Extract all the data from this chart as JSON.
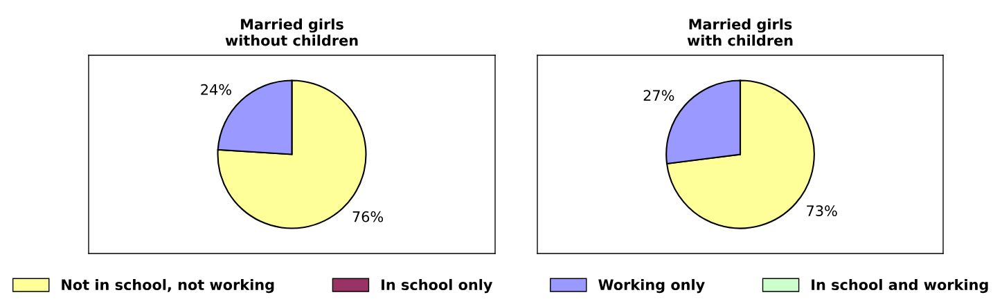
{
  "chart_data": [
    {
      "type": "pie",
      "title": "Married girls\nwithout children",
      "categories": [
        "Not in school, not working",
        "In school only",
        "Working only",
        "In school and working"
      ],
      "values": [
        76,
        0,
        24,
        0
      ],
      "colors": [
        "#ffff99",
        "#993366",
        "#9999ff",
        "#ccffcc"
      ],
      "value_labels": [
        "76%",
        null,
        "24%",
        null
      ],
      "legend": "bottom"
    },
    {
      "type": "pie",
      "title": "Married girls\nwith children",
      "categories": [
        null,
        null,
        null,
        null
      ],
      "values": [
        73,
        0,
        27,
        0
      ],
      "colors": [
        "#ffff99",
        "#993366",
        "#9999ff",
        "#ccffcc"
      ],
      "value_labels": [
        "73%",
        null,
        "27%",
        null
      ]
    }
  ]
}
